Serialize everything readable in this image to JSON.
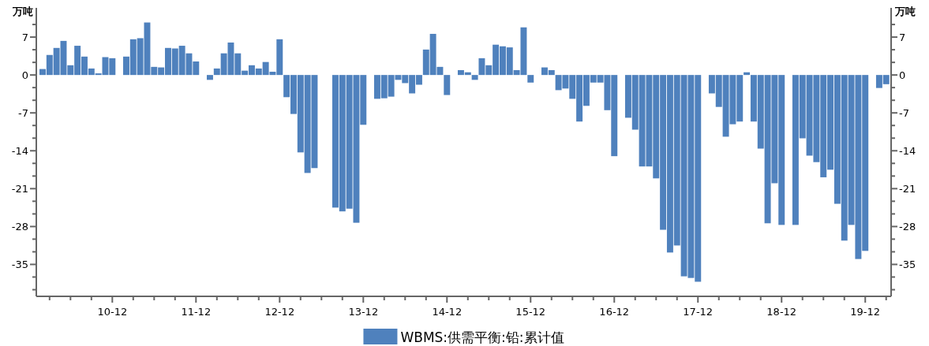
{
  "chart_data": {
    "type": "bar",
    "ylabel": "万吨",
    "y2label": "万吨",
    "legend": "bottom",
    "x": [
      "2010-02",
      "2010-03",
      "2010-04",
      "2010-05",
      "2010-06",
      "2010-07",
      "2010-08",
      "2010-09",
      "2010-10",
      "2010-11",
      "2010-12",
      "2011-01",
      "2011-02",
      "2011-03",
      "2011-04",
      "2011-05",
      "2011-06",
      "2011-07",
      "2011-08",
      "2011-09",
      "2011-10",
      "2011-11",
      "2011-12",
      "2012-01",
      "2012-02",
      "2012-03",
      "2012-04",
      "2012-05",
      "2012-06",
      "2012-07",
      "2012-08",
      "2012-09",
      "2012-10",
      "2012-11",
      "2012-12",
      "2013-01",
      "2013-02",
      "2013-03",
      "2013-04",
      "2013-05",
      "2013-06",
      "2013-07",
      "2013-08",
      "2013-09",
      "2013-10",
      "2013-11",
      "2013-12",
      "2014-01",
      "2014-02",
      "2014-03",
      "2014-04",
      "2014-05",
      "2014-06",
      "2014-07",
      "2014-08",
      "2014-09",
      "2014-10",
      "2014-11",
      "2014-12",
      "2015-01",
      "2015-02",
      "2015-03",
      "2015-04",
      "2015-05",
      "2015-06",
      "2015-07",
      "2015-08",
      "2015-09",
      "2015-10",
      "2015-11",
      "2015-12",
      "2016-01",
      "2016-02",
      "2016-03",
      "2016-04",
      "2016-05",
      "2016-06",
      "2016-07",
      "2016-08",
      "2016-09",
      "2016-10",
      "2016-11",
      "2016-12",
      "2017-01",
      "2017-02",
      "2017-03",
      "2017-04",
      "2017-05",
      "2017-06",
      "2017-07",
      "2017-08",
      "2017-09",
      "2017-10",
      "2017-11",
      "2017-12",
      "2018-01",
      "2018-02",
      "2018-03",
      "2018-04",
      "2018-05",
      "2018-06",
      "2018-07",
      "2018-08",
      "2018-09",
      "2018-10",
      "2018-11",
      "2018-12",
      "2019-01",
      "2019-02",
      "2019-03",
      "2019-04",
      "2019-05",
      "2019-06",
      "2019-07",
      "2019-08",
      "2019-09",
      "2019-10",
      "2019-11",
      "2019-12",
      "2020-01",
      "2020-02",
      "2020-03"
    ],
    "series": [
      {
        "name": "WBMS:供需平衡:铅:累计值",
        "color": "#4f81bd",
        "values": [
          1.1,
          3.7,
          5.0,
          6.3,
          1.8,
          5.4,
          3.4,
          1.2,
          0.3,
          3.3,
          3.1,
          null,
          3.4,
          6.6,
          6.8,
          9.7,
          1.5,
          1.4,
          5.0,
          4.9,
          5.4,
          4.0,
          2.5,
          null,
          -0.9,
          1.2,
          4.0,
          6.0,
          4.0,
          0.8,
          1.8,
          1.2,
          2.4,
          0.6,
          6.6,
          -4.1,
          -7.2,
          -14.3,
          -18.1,
          -17.2,
          null,
          null,
          -24.5,
          -25.2,
          -24.7,
          -27.3,
          -9.2,
          null,
          -4.4,
          -4.3,
          -4.0,
          -0.9,
          -1.5,
          -3.4,
          -1.8,
          4.7,
          7.6,
          1.5,
          -3.7,
          null,
          0.9,
          0.5,
          -0.9,
          3.1,
          1.8,
          5.6,
          5.3,
          5.1,
          0.9,
          8.8,
          -1.4,
          null,
          1.4,
          0.9,
          -2.8,
          -2.5,
          -4.4,
          -8.6,
          -5.7,
          -1.4,
          -1.4,
          -6.5,
          -15.0,
          null,
          -7.9,
          -10.1,
          -16.9,
          -16.9,
          -19.1,
          -28.6,
          -32.8,
          -31.5,
          -37.2,
          -37.5,
          -38.2,
          null,
          -3.4,
          -5.9,
          -11.4,
          -9.1,
          -8.6,
          0.5,
          -8.6,
          -13.6,
          -27.4,
          -20.0,
          -27.7,
          null,
          -27.7,
          -11.7,
          -14.9,
          -16.1,
          -18.9,
          -17.5,
          -23.8,
          -30.6,
          -27.7,
          -34.0,
          -32.5,
          null,
          -2.4,
          -1.7
        ]
      }
    ],
    "xlim": [
      "2010-01-04",
      "2020-03-23"
    ],
    "xticks": [
      {
        "value": "2010-03",
        "label": null
      },
      {
        "value": "2010-06",
        "label": null
      },
      {
        "value": "2010-09",
        "label": null
      },
      {
        "value": "2010-12",
        "label": "10-12"
      },
      {
        "value": "2011-03",
        "label": null
      },
      {
        "value": "2011-06",
        "label": null
      },
      {
        "value": "2011-09",
        "label": null
      },
      {
        "value": "2011-12",
        "label": "11-12"
      },
      {
        "value": "2012-03",
        "label": null
      },
      {
        "value": "2012-06",
        "label": null
      },
      {
        "value": "2012-09",
        "label": null
      },
      {
        "value": "2012-12",
        "label": "12-12"
      },
      {
        "value": "2013-03",
        "label": null
      },
      {
        "value": "2013-06",
        "label": null
      },
      {
        "value": "2013-09",
        "label": null
      },
      {
        "value": "2013-12",
        "label": "13-12"
      },
      {
        "value": "2014-03",
        "label": null
      },
      {
        "value": "2014-06",
        "label": null
      },
      {
        "value": "2014-09",
        "label": null
      },
      {
        "value": "2014-12",
        "label": "14-12"
      },
      {
        "value": "2015-03",
        "label": null
      },
      {
        "value": "2015-06",
        "label": null
      },
      {
        "value": "2015-09",
        "label": null
      },
      {
        "value": "2015-12",
        "label": "15-12"
      },
      {
        "value": "2016-03",
        "label": null
      },
      {
        "value": "2016-06",
        "label": null
      },
      {
        "value": "2016-09",
        "label": null
      },
      {
        "value": "2016-12",
        "label": "16-12"
      },
      {
        "value": "2017-03",
        "label": null
      },
      {
        "value": "2017-06",
        "label": null
      },
      {
        "value": "2017-09",
        "label": null
      },
      {
        "value": "2017-12",
        "label": "17-12"
      },
      {
        "value": "2018-03",
        "label": null
      },
      {
        "value": "2018-06",
        "label": null
      },
      {
        "value": "2018-09",
        "label": null
      },
      {
        "value": "2018-12",
        "label": "18-12"
      },
      {
        "value": "2019-03",
        "label": null
      },
      {
        "value": "2019-06",
        "label": null
      },
      {
        "value": "2019-09",
        "label": null
      },
      {
        "value": "2019-12",
        "label": "19-12"
      },
      {
        "value": "2020-03",
        "label": null
      }
    ],
    "ylim": [
      -40.9,
      12.4
    ],
    "yticks": [
      {
        "value": 9.33,
        "label": null
      },
      7,
      {
        "value": 4.67,
        "label": null
      },
      {
        "value": 2.33,
        "label": null
      },
      0,
      {
        "value": -2.33,
        "label": null
      },
      {
        "value": -4.67,
        "label": null
      },
      -7,
      {
        "value": -9.33,
        "label": null
      },
      {
        "value": -11.67,
        "label": null
      },
      -14,
      {
        "value": -16.33,
        "label": null
      },
      {
        "value": -18.67,
        "label": null
      },
      -21,
      {
        "value": -23.33,
        "label": null
      },
      {
        "value": -25.67,
        "label": null
      },
      -28,
      {
        "value": -30.33,
        "label": null
      },
      {
        "value": -32.67,
        "label": null
      },
      -35,
      {
        "value": -37.33,
        "label": null
      },
      {
        "value": -39.67,
        "label": null
      }
    ],
    "y2lim": [
      -40.9,
      12.4
    ],
    "y2ticks": [
      {
        "value": 9.33,
        "label": null
      },
      7,
      {
        "value": 4.67,
        "label": null
      },
      {
        "value": 2.33,
        "label": null
      },
      0,
      {
        "value": -2.33,
        "label": null
      },
      {
        "value": -4.67,
        "label": null
      },
      -7,
      {
        "value": -9.33,
        "label": null
      },
      {
        "value": -11.67,
        "label": null
      },
      -14,
      {
        "value": -16.33,
        "label": null
      },
      {
        "value": -18.67,
        "label": null
      },
      -21,
      {
        "value": -23.33,
        "label": null
      },
      {
        "value": -25.67,
        "label": null
      },
      -28,
      {
        "value": -30.33,
        "label": null
      },
      {
        "value": -32.67,
        "label": null
      },
      -35,
      {
        "value": -37.33,
        "label": null
      },
      {
        "value": -39.67,
        "label": null
      }
    ]
  }
}
